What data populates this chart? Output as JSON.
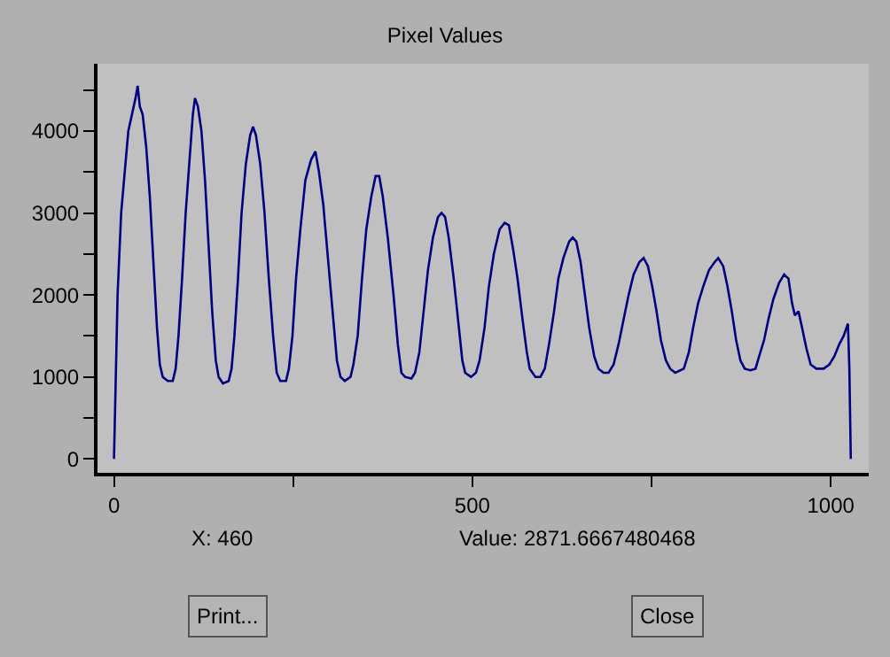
{
  "chart_data": {
    "type": "line",
    "title": "Pixel Values",
    "xlim": [
      -23,
      1053
    ],
    "ylim": [
      -170,
      4820
    ],
    "xticks": [
      0,
      {
        "value": 250,
        "label": null
      },
      500,
      {
        "value": 750,
        "label": null
      },
      1000
    ],
    "yticks": [
      0,
      {
        "value": 500,
        "label": null
      },
      1000,
      {
        "value": 1500,
        "label": null
      },
      2000,
      {
        "value": 2500,
        "label": null
      },
      3000,
      {
        "value": 3500,
        "label": null
      },
      4000,
      {
        "value": 4500,
        "label": null
      }
    ],
    "grid": false,
    "legend": false,
    "marker": "none",
    "line_style": "solid",
    "annotations": [
      "X: 460",
      "Value: 2871.6667480468",
      "Print...",
      "Close"
    ],
    "x": [
      0,
      2,
      5,
      10,
      15,
      20,
      25,
      30,
      33,
      36,
      40,
      45,
      50,
      55,
      60,
      64,
      68,
      75,
      82,
      86,
      90,
      95,
      100,
      105,
      110,
      113,
      117,
      122,
      127,
      132,
      137,
      142,
      146,
      152,
      160,
      164,
      168,
      173,
      178,
      184,
      190,
      194,
      198,
      204,
      210,
      216,
      222,
      227,
      232,
      240,
      244,
      249,
      254,
      260,
      267,
      275,
      281,
      286,
      292,
      298,
      305,
      311,
      316,
      322,
      330,
      334,
      340,
      346,
      352,
      359,
      365,
      370,
      375,
      382,
      390,
      396,
      401,
      406,
      415,
      420,
      426,
      432,
      438,
      445,
      452,
      457,
      462,
      467,
      474,
      480,
      486,
      490,
      498,
      505,
      510,
      517,
      523,
      530,
      538,
      545,
      551,
      557,
      563,
      570,
      576,
      580,
      588,
      595,
      601,
      607,
      614,
      620,
      627,
      635,
      640,
      645,
      651,
      657,
      663,
      670,
      676,
      683,
      690,
      697,
      704,
      711,
      718,
      725,
      733,
      739,
      745,
      751,
      757,
      763,
      770,
      776,
      783,
      790,
      795,
      802,
      808,
      815,
      822,
      830,
      838,
      843,
      850,
      856,
      862,
      868,
      874,
      880,
      888,
      895,
      900,
      907,
      913,
      920,
      928,
      935,
      941,
      946,
      950,
      955,
      960,
      966,
      972,
      980,
      990,
      998,
      1005,
      1012,
      1018,
      1024,
      1026,
      1028
    ],
    "series": [
      {
        "color": "#000080",
        "values": [
          0,
          800,
          2000,
          3000,
          3500,
          4000,
          4200,
          4400,
          4550,
          4300,
          4200,
          3800,
          3200,
          2400,
          1600,
          1150,
          1000,
          950,
          950,
          1100,
          1500,
          2200,
          3000,
          3600,
          4200,
          4400,
          4300,
          4000,
          3400,
          2600,
          1800,
          1200,
          1000,
          920,
          950,
          1100,
          1500,
          2200,
          3000,
          3600,
          3950,
          4050,
          3950,
          3600,
          3000,
          2200,
          1500,
          1050,
          950,
          950,
          1100,
          1500,
          2200,
          2800,
          3400,
          3650,
          3750,
          3500,
          3100,
          2500,
          1800,
          1200,
          1000,
          950,
          1000,
          1150,
          1500,
          2200,
          2800,
          3200,
          3450,
          3450,
          3200,
          2700,
          2000,
          1400,
          1050,
          1000,
          980,
          1050,
          1300,
          1800,
          2300,
          2700,
          2950,
          3000,
          2950,
          2700,
          2200,
          1700,
          1200,
          1050,
          1000,
          1050,
          1200,
          1600,
          2100,
          2500,
          2800,
          2880,
          2850,
          2550,
          2200,
          1700,
          1300,
          1100,
          1000,
          1000,
          1100,
          1400,
          1800,
          2200,
          2450,
          2650,
          2700,
          2650,
          2400,
          2000,
          1600,
          1250,
          1100,
          1050,
          1050,
          1150,
          1400,
          1700,
          2000,
          2250,
          2400,
          2450,
          2350,
          2100,
          1800,
          1450,
          1200,
          1100,
          1050,
          1080,
          1100,
          1300,
          1600,
          1900,
          2100,
          2300,
          2400,
          2450,
          2350,
          2100,
          1800,
          1450,
          1200,
          1100,
          1080,
          1100,
          1250,
          1450,
          1700,
          1950,
          2150,
          2250,
          2200,
          1900,
          1750,
          1800,
          1600,
          1350,
          1150,
          1100,
          1100,
          1150,
          1250,
          1400,
          1500,
          1650,
          1100,
          0
        ]
      }
    ]
  }
}
